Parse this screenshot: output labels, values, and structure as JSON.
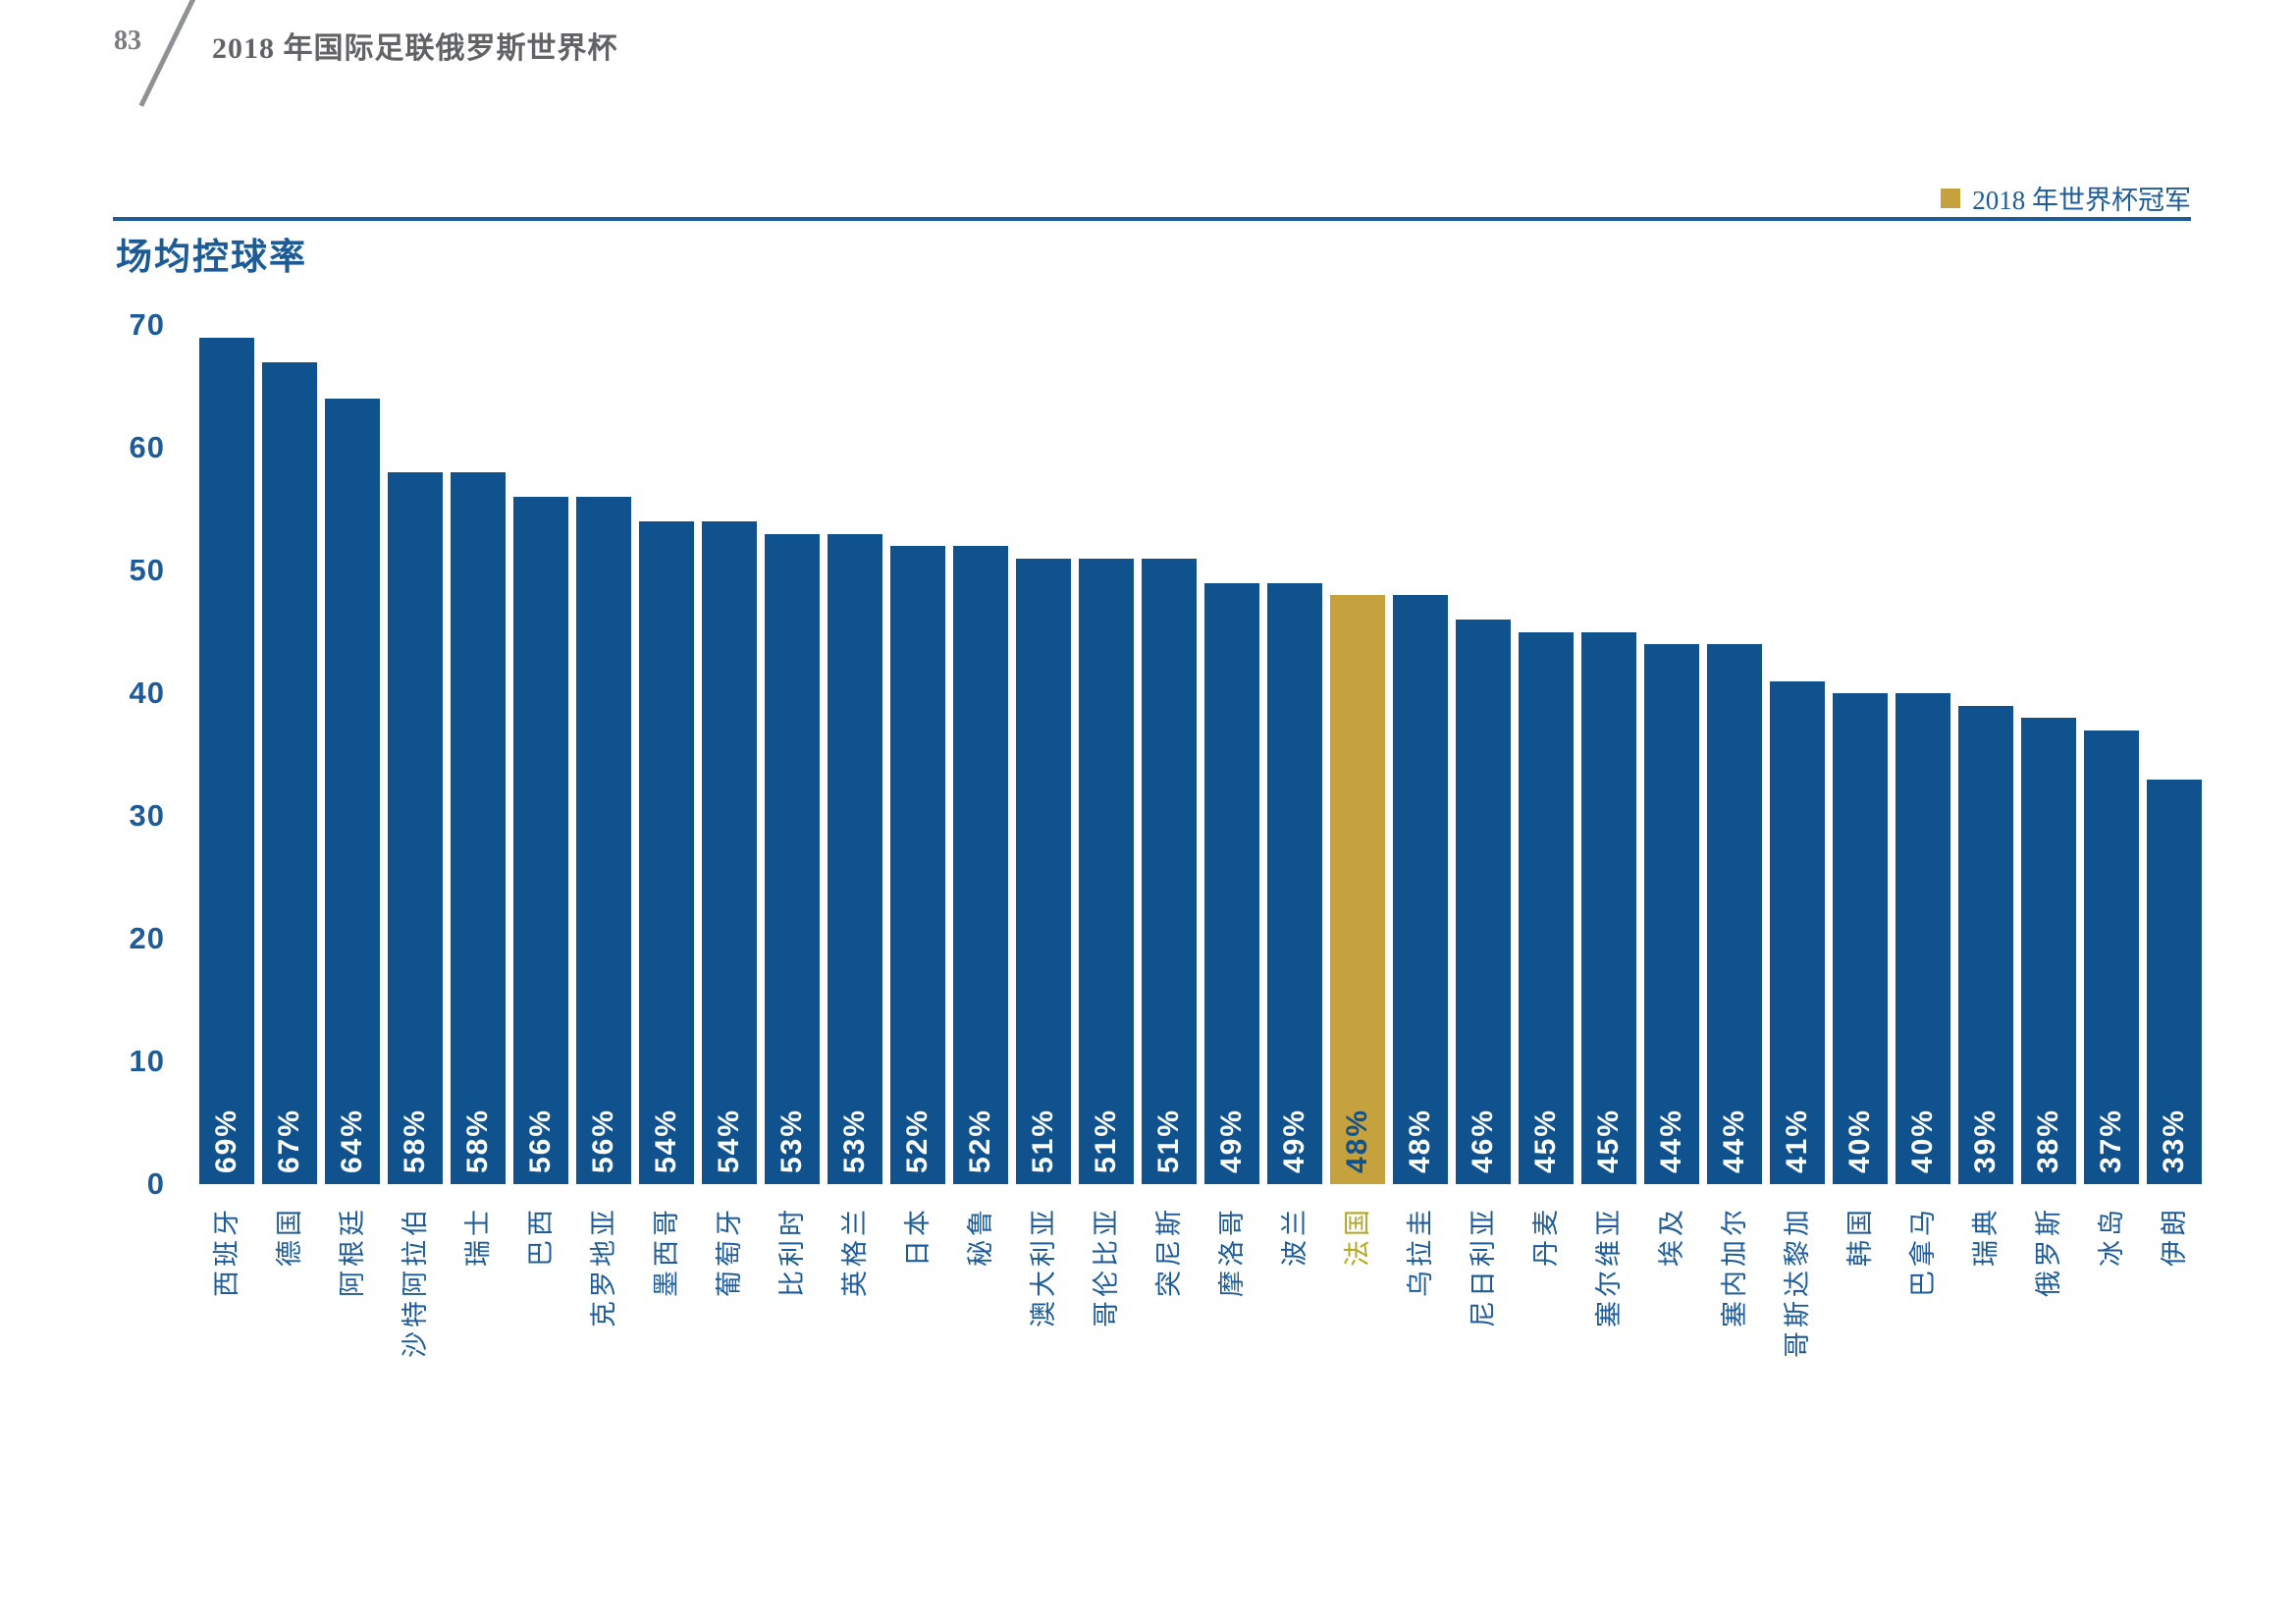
{
  "page": {
    "number": "83",
    "header_title": "2018 年国际足联俄罗斯世界杯"
  },
  "legend": {
    "label": "2018 年世界杯冠军",
    "swatch_color": "#c6a23e"
  },
  "colors": {
    "bar_blue": "#10528d",
    "highlight_gold": "#c6a23e",
    "highlight_label_gold": "#b4a722",
    "text_navy": "#1e5c99",
    "header_gray": "#626366",
    "rule_blue": "#1e5c99",
    "value_text_white": "#ffffff"
  },
  "chart_data": {
    "type": "bar",
    "title": "场均控球率",
    "categories": [
      "西班牙",
      "德国",
      "阿根廷",
      "沙特阿拉伯",
      "瑞士",
      "巴西",
      "克罗地亚",
      "墨西哥",
      "葡萄牙",
      "比利时",
      "英格兰",
      "日本",
      "秘鲁",
      "澳大利亚",
      "哥伦比亚",
      "突尼斯",
      "摩洛哥",
      "波兰",
      "法国",
      "乌拉圭",
      "尼日利亚",
      "丹麦",
      "塞尔维亚",
      "埃及",
      "塞内加尔",
      "哥斯达黎加",
      "韩国",
      "巴拿马",
      "瑞典",
      "俄罗斯",
      "冰岛",
      "伊朗"
    ],
    "values": [
      69,
      67,
      64,
      58,
      58,
      56,
      56,
      54,
      54,
      53,
      53,
      52,
      52,
      51,
      51,
      51,
      49,
      49,
      48,
      48,
      46,
      45,
      45,
      44,
      44,
      41,
      40,
      40,
      39,
      38,
      37,
      33
    ],
    "value_labels": [
      "69%",
      "67%",
      "64%",
      "58%",
      "58%",
      "56%",
      "56%",
      "54%",
      "54%",
      "53%",
      "53%",
      "52%",
      "52%",
      "51%",
      "51%",
      "51%",
      "49%",
      "49%",
      "48%",
      "48%",
      "46%",
      "45%",
      "45%",
      "44%",
      "44%",
      "41%",
      "40%",
      "40%",
      "39%",
      "38%",
      "37%",
      "33%"
    ],
    "highlight_index": 18,
    "highlight_category": "法国",
    "xlabel": "",
    "ylabel": "",
    "ylim": [
      0,
      70
    ],
    "yticks": [
      0,
      10,
      20,
      30,
      40,
      50,
      60,
      70
    ],
    "grid": false,
    "legend_position": "top-right",
    "legend_entries": [
      "2018 年世界杯冠军"
    ]
  }
}
